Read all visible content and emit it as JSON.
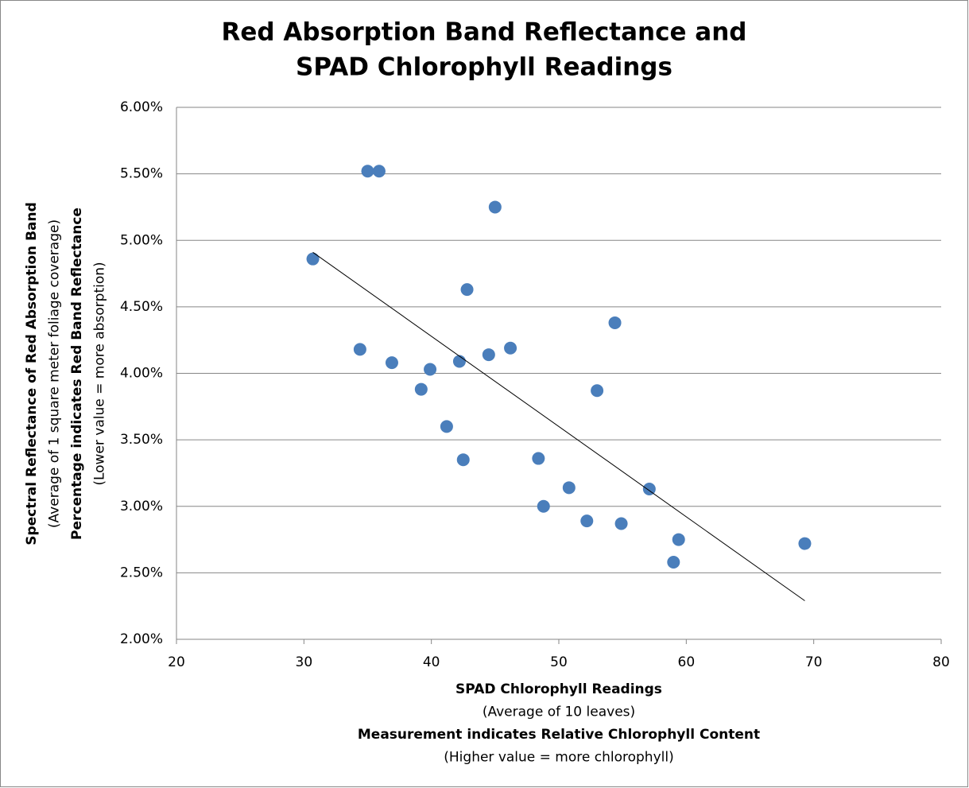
{
  "chart_data": {
    "type": "scatter",
    "title": [
      "Red Absorption Band Reflectance and",
      "SPAD Chlorophyll Readings"
    ],
    "x_label": [
      {
        "text": "SPAD Chlorophyll Readings",
        "bold": true
      },
      {
        "text": "(Average of 10 leaves)",
        "bold": false
      },
      {
        "text": "Measurement indicates Relative Chlorophyll Content",
        "bold": true
      },
      {
        "text": "(Higher value = more chlorophyll)",
        "bold": false
      }
    ],
    "y_label": [
      {
        "text": "Spectral Reflectance of Red Absorption Band",
        "bold": true
      },
      {
        "text": "(Average of 1 square meter foliage coverage)",
        "bold": false
      },
      {
        "text": "Percentage indicates Red Band Reflectance",
        "bold": true
      },
      {
        "text": "(Lower value = more absorption)",
        "bold": false
      }
    ],
    "xlim": [
      20,
      80
    ],
    "xticks": [
      20,
      30,
      40,
      50,
      60,
      70,
      80
    ],
    "ylim": [
      2,
      6
    ],
    "yticks": [
      {
        "value": 2,
        "label": "2.00%"
      },
      {
        "value": 2.5,
        "label": "2.50%"
      },
      {
        "value": 3,
        "label": "3.00%"
      },
      {
        "value": 3.5,
        "label": "3.50%"
      },
      {
        "value": 4,
        "label": "4.00%"
      },
      {
        "value": 4.5,
        "label": "4.50%"
      },
      {
        "value": 5,
        "label": "5.00%"
      },
      {
        "value": 5.5,
        "label": "5.50%"
      },
      {
        "value": 6,
        "label": "6.00%"
      }
    ],
    "grid": true,
    "color": "#4a7ebb",
    "x": [
      30.7,
      35.0,
      35.9,
      45.0,
      42.8,
      54.4,
      34.4,
      36.9,
      39.9,
      42.2,
      44.5,
      46.2,
      39.2,
      53.0,
      41.2,
      42.5,
      48.4,
      50.8,
      57.1,
      48.8,
      52.2,
      54.9,
      59.4,
      59.0,
      69.3
    ],
    "values": [
      4.86,
      5.52,
      5.52,
      5.25,
      4.63,
      4.38,
      4.18,
      4.08,
      4.03,
      4.09,
      4.14,
      4.19,
      3.88,
      3.87,
      3.6,
      3.35,
      3.36,
      3.14,
      3.13,
      3.0,
      2.89,
      2.87,
      2.75,
      2.58,
      2.72
    ],
    "trendline": {
      "type": "linear",
      "color": "#000000",
      "x": [
        30.7,
        69.3
      ],
      "values": [
        4.91,
        2.29
      ]
    }
  }
}
